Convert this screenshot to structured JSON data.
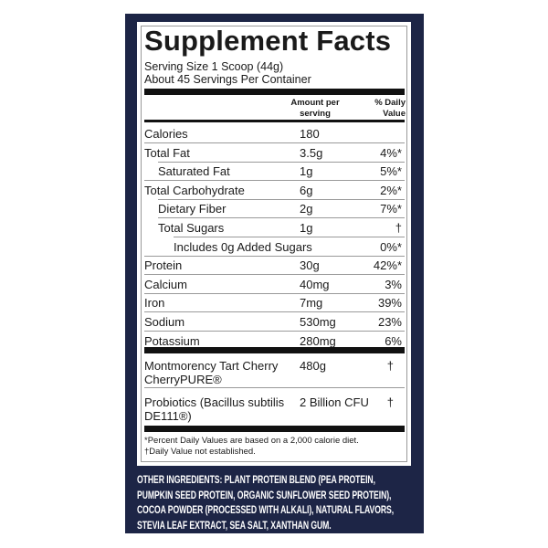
{
  "colors": {
    "panel": "#1d2546",
    "label": "#ffffff",
    "text": "#1a1a1a"
  },
  "title": "Supplement Facts",
  "serving_size": "Serving Size 1 Scoop (44g)",
  "servings_per_container": "About 45 Servings Per Container",
  "header": {
    "amount": "Amount per serving",
    "daily_value": "% Daily Value"
  },
  "nutrients": [
    {
      "name": "Calories",
      "amount": "180",
      "dv": ""
    },
    {
      "name": "Total Fat",
      "amount": "3.5g",
      "dv": "4%*"
    },
    {
      "name": "Saturated Fat",
      "amount": "1g",
      "dv": "5%*"
    },
    {
      "name": "Total Carbohydrate",
      "amount": "6g",
      "dv": "2%*"
    },
    {
      "name": "Dietary Fiber",
      "amount": "2g",
      "dv": "7%*"
    },
    {
      "name": "Total Sugars",
      "amount": "1g",
      "dv": "†"
    },
    {
      "name": "Includes 0g Added Sugars",
      "amount": "",
      "dv": "0%*"
    },
    {
      "name": "Protein",
      "amount": "30g",
      "dv": "42%*"
    },
    {
      "name": "Calcium",
      "amount": "40mg",
      "dv": "3%"
    },
    {
      "name": "Iron",
      "amount": "7mg",
      "dv": "39%"
    },
    {
      "name": "Sodium",
      "amount": "530mg",
      "dv": "23%"
    },
    {
      "name": "Potassium",
      "amount": "280mg",
      "dv": "6%"
    }
  ],
  "other": [
    {
      "name": "Montmorency Tart Cherry CherryPURE®",
      "amount": "480g",
      "dv": "†"
    },
    {
      "name": "Probiotics (Bacillus subtilis DE111®)",
      "amount": "2 Billion CFU",
      "dv": "†"
    }
  ],
  "footnotes": [
    "*Percent Daily Values are based on a 2,000 calorie diet.",
    "†Daily Value not established."
  ],
  "other_ingredients": "OTHER INGREDIENTS: PLANT PROTEIN BLEND (PEA PROTEIN, PUMPKIN SEED PROTEIN, ORGANIC SUNFLOWER SEED PROTEIN), COCOA POWDER (PROCESSED WITH ALKALI), NATURAL FLAVORS, STEVIA LEAF EXTRACT, SEA SALT, XANTHAN GUM."
}
